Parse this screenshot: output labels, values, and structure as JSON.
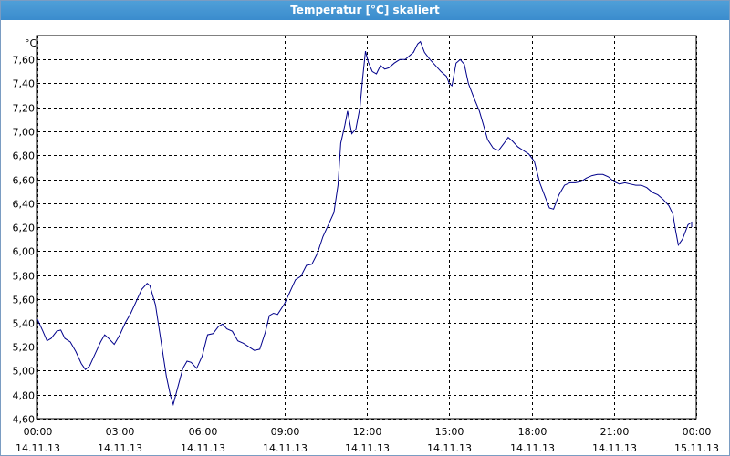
{
  "window": {
    "title": "Temperatur [°C] skaliert"
  },
  "chart_data": {
    "type": "line",
    "title": "Temperatur [°C] skaliert",
    "ylabel": "°C",
    "xlabel": "",
    "ylim": [
      4.6,
      7.8
    ],
    "xlim_hours": [
      0,
      24
    ],
    "grid": true,
    "line_color": "#00008b",
    "y_ticks": [
      "7,60",
      "7,40",
      "7,20",
      "7,00",
      "6,80",
      "6,60",
      "6,40",
      "6,20",
      "6,00",
      "5,80",
      "5,60",
      "5,40",
      "5,20",
      "5,00",
      "4,80",
      "4,60"
    ],
    "x_ticks": [
      {
        "time": "00:00",
        "date": "14.11.13"
      },
      {
        "time": "03:00",
        "date": "14.11.13"
      },
      {
        "time": "06:00",
        "date": "14.11.13"
      },
      {
        "time": "09:00",
        "date": "14.11.13"
      },
      {
        "time": "12:00",
        "date": "14.11.13"
      },
      {
        "time": "15:00",
        "date": "14.11.13"
      },
      {
        "time": "18:00",
        "date": "14.11.13"
      },
      {
        "time": "21:00",
        "date": "14.11.13"
      },
      {
        "time": "00:00",
        "date": "15.11.13"
      }
    ],
    "series": [
      {
        "values": [
          [
            0.0,
            5.43
          ],
          [
            0.2,
            5.33
          ],
          [
            0.35,
            5.25
          ],
          [
            0.5,
            5.27
          ],
          [
            0.7,
            5.33
          ],
          [
            0.85,
            5.34
          ],
          [
            1.0,
            5.27
          ],
          [
            1.2,
            5.24
          ],
          [
            1.4,
            5.16
          ],
          [
            1.6,
            5.06
          ],
          [
            1.75,
            5.01
          ],
          [
            1.9,
            5.04
          ],
          [
            2.1,
            5.14
          ],
          [
            2.3,
            5.24
          ],
          [
            2.45,
            5.3
          ],
          [
            2.6,
            5.27
          ],
          [
            2.8,
            5.22
          ],
          [
            3.0,
            5.3
          ],
          [
            3.2,
            5.4
          ],
          [
            3.4,
            5.48
          ],
          [
            3.6,
            5.58
          ],
          [
            3.8,
            5.68
          ],
          [
            4.0,
            5.73
          ],
          [
            4.1,
            5.71
          ],
          [
            4.3,
            5.55
          ],
          [
            4.5,
            5.25
          ],
          [
            4.7,
            4.95
          ],
          [
            4.85,
            4.79
          ],
          [
            4.95,
            4.72
          ],
          [
            5.1,
            4.85
          ],
          [
            5.3,
            5.02
          ],
          [
            5.45,
            5.08
          ],
          [
            5.6,
            5.07
          ],
          [
            5.8,
            5.02
          ],
          [
            6.0,
            5.12
          ],
          [
            6.2,
            5.3
          ],
          [
            6.4,
            5.31
          ],
          [
            6.6,
            5.37
          ],
          [
            6.75,
            5.39
          ],
          [
            6.9,
            5.35
          ],
          [
            7.1,
            5.33
          ],
          [
            7.3,
            5.25
          ],
          [
            7.5,
            5.23
          ],
          [
            7.7,
            5.2
          ],
          [
            7.9,
            5.17
          ],
          [
            8.1,
            5.18
          ],
          [
            8.3,
            5.32
          ],
          [
            8.45,
            5.46
          ],
          [
            8.6,
            5.48
          ],
          [
            8.75,
            5.47
          ],
          [
            9.0,
            5.56
          ],
          [
            9.2,
            5.66
          ],
          [
            9.4,
            5.76
          ],
          [
            9.6,
            5.79
          ],
          [
            9.8,
            5.88
          ],
          [
            10.0,
            5.89
          ],
          [
            10.2,
            5.98
          ],
          [
            10.4,
            6.12
          ],
          [
            10.6,
            6.22
          ],
          [
            10.8,
            6.32
          ],
          [
            10.95,
            6.55
          ],
          [
            11.05,
            6.9
          ],
          [
            11.2,
            7.05
          ],
          [
            11.3,
            7.17
          ],
          [
            11.45,
            6.98
          ],
          [
            11.6,
            7.02
          ],
          [
            11.75,
            7.2
          ],
          [
            11.85,
            7.45
          ],
          [
            11.95,
            7.67
          ],
          [
            12.05,
            7.58
          ],
          [
            12.2,
            7.5
          ],
          [
            12.35,
            7.48
          ],
          [
            12.5,
            7.55
          ],
          [
            12.65,
            7.52
          ],
          [
            12.8,
            7.53
          ],
          [
            13.0,
            7.57
          ],
          [
            13.2,
            7.6
          ],
          [
            13.4,
            7.6
          ],
          [
            13.55,
            7.63
          ],
          [
            13.7,
            7.66
          ],
          [
            13.85,
            7.73
          ],
          [
            13.95,
            7.75
          ],
          [
            14.1,
            7.66
          ],
          [
            14.3,
            7.6
          ],
          [
            14.5,
            7.55
          ],
          [
            14.7,
            7.5
          ],
          [
            14.9,
            7.46
          ],
          [
            15.0,
            7.4
          ],
          [
            15.1,
            7.38
          ],
          [
            15.25,
            7.57
          ],
          [
            15.4,
            7.6
          ],
          [
            15.55,
            7.56
          ],
          [
            15.7,
            7.4
          ],
          [
            15.9,
            7.28
          ],
          [
            16.1,
            7.17
          ],
          [
            16.25,
            7.05
          ],
          [
            16.4,
            6.93
          ],
          [
            16.6,
            6.86
          ],
          [
            16.8,
            6.84
          ],
          [
            17.0,
            6.9
          ],
          [
            17.15,
            6.95
          ],
          [
            17.3,
            6.92
          ],
          [
            17.5,
            6.87
          ],
          [
            17.7,
            6.84
          ],
          [
            17.9,
            6.81
          ],
          [
            18.1,
            6.75
          ],
          [
            18.3,
            6.57
          ],
          [
            18.5,
            6.45
          ],
          [
            18.65,
            6.36
          ],
          [
            18.8,
            6.35
          ],
          [
            19.0,
            6.47
          ],
          [
            19.2,
            6.55
          ],
          [
            19.4,
            6.57
          ],
          [
            19.6,
            6.57
          ],
          [
            19.8,
            6.58
          ],
          [
            20.0,
            6.61
          ],
          [
            20.2,
            6.63
          ],
          [
            20.4,
            6.64
          ],
          [
            20.6,
            6.64
          ],
          [
            20.8,
            6.62
          ],
          [
            21.0,
            6.58
          ],
          [
            21.2,
            6.56
          ],
          [
            21.4,
            6.57
          ],
          [
            21.6,
            6.56
          ],
          [
            21.8,
            6.55
          ],
          [
            22.0,
            6.55
          ],
          [
            22.2,
            6.53
          ],
          [
            22.4,
            6.49
          ],
          [
            22.6,
            6.47
          ],
          [
            22.8,
            6.43
          ],
          [
            23.0,
            6.38
          ],
          [
            23.15,
            6.31
          ],
          [
            23.25,
            6.17
          ],
          [
            23.35,
            6.05
          ],
          [
            23.5,
            6.1
          ],
          [
            23.7,
            6.22
          ],
          [
            23.85,
            6.24
          ],
          [
            24.0,
            6.22
          ],
          [
            24.2,
            6.2
          ],
          [
            24.4,
            6.2
          ]
        ]
      }
    ]
  }
}
